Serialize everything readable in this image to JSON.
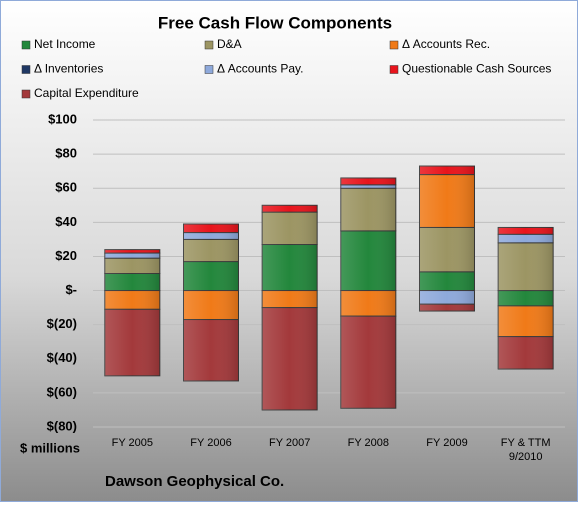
{
  "chart_data": {
    "type": "stacked-bar",
    "title": "Free Cash Flow Components",
    "y_label": "$ millions",
    "footer": "Dawson Geophysical Co.",
    "categories": [
      "FY 2005",
      "FY 2006",
      "FY 2007",
      "FY 2008",
      "FY 2009",
      "FY & TTM\n9/2010"
    ],
    "series": [
      {
        "name": "Net Income",
        "color": "#23873c",
        "values": [
          10,
          17,
          27,
          35,
          11,
          -9
        ]
      },
      {
        "name": "D&A",
        "color": "#9c9563",
        "values": [
          9,
          13,
          19,
          25,
          26,
          28
        ]
      },
      {
        "name": "Δ Accounts Rec.",
        "color": "#f07a18",
        "values": [
          -11,
          -17,
          -10,
          -15,
          31,
          -18
        ]
      },
      {
        "name": "Δ Inventories",
        "color": "#1f3864",
        "values": [
          0,
          0,
          0,
          0,
          0,
          0
        ]
      },
      {
        "name": "Δ Accounts Pay.",
        "color": "#8ea9db",
        "values": [
          3,
          4,
          0,
          2,
          -8,
          5
        ]
      },
      {
        "name": "Questionable Cash Sources",
        "color": "#e8141c",
        "values": [
          2,
          5,
          4,
          4,
          5,
          4
        ]
      },
      {
        "name": "Capital Expenditure",
        "color": "#a3393b",
        "values": [
          -39,
          -36,
          -60,
          -54,
          -4,
          -19
        ]
      }
    ],
    "ylim": [
      -80,
      100
    ],
    "yticks": [
      {
        "value": -80,
        "label": "$(80)"
      },
      {
        "value": -60,
        "label": "$(60)"
      },
      {
        "value": -40,
        "label": "$(40)"
      },
      {
        "value": -20,
        "label": "$(20)"
      },
      {
        "value": 0,
        "label": "$-"
      },
      {
        "value": 20,
        "label": "$20"
      },
      {
        "value": 40,
        "label": "$40"
      },
      {
        "value": 60,
        "label": "$60"
      },
      {
        "value": 80,
        "label": "$80"
      },
      {
        "value": 100,
        "label": "$100"
      }
    ],
    "grid": true,
    "legend": "top"
  }
}
